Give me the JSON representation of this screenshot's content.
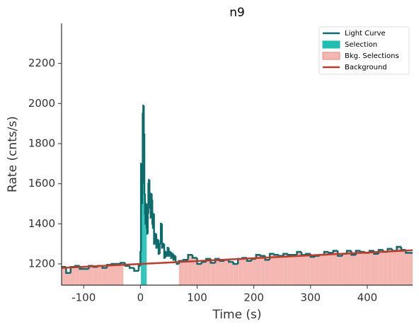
{
  "chart_data": {
    "type": "lightcurve",
    "title": "n9",
    "x_label": "Time (s)",
    "y_label": "Rate (cnts/s)",
    "xlim": [
      -139,
      480
    ],
    "ylim": [
      1094,
      2400
    ],
    "xticks": [
      -100,
      0,
      100,
      200,
      300,
      400
    ],
    "yticks": [
      1200,
      1400,
      1600,
      1800,
      2000,
      2200
    ],
    "series": [
      {
        "name": "Light Curve",
        "color": "#0e6b6b",
        "x": [
          -139,
          -131,
          -123,
          -115,
          -107,
          -99,
          -91,
          -83,
          -75,
          -67,
          -59,
          -51,
          -43,
          -35,
          -27,
          -19,
          -11,
          -3,
          0,
          1,
          2,
          3,
          4,
          5,
          6,
          7,
          8,
          9,
          10,
          11,
          12,
          13,
          14,
          15,
          16,
          17,
          18,
          19,
          20,
          21,
          22,
          23,
          24,
          26,
          28,
          30,
          32,
          34,
          36,
          38,
          40,
          42,
          44,
          46,
          48,
          50,
          52,
          54,
          56,
          58,
          60,
          62,
          64,
          68,
          76,
          84,
          92,
          100,
          108,
          116,
          124,
          132,
          140,
          148,
          156,
          164,
          172,
          180,
          188,
          196,
          204,
          212,
          220,
          228,
          236,
          244,
          252,
          260,
          268,
          276,
          284,
          292,
          300,
          308,
          316,
          324,
          332,
          340,
          348,
          356,
          364,
          372,
          380,
          388,
          396,
          404,
          412,
          420,
          428,
          436,
          444,
          452,
          460,
          468
        ],
        "values": [
          1185,
          1155,
          1185,
          1190,
          1175,
          1175,
          1190,
          1185,
          1190,
          1180,
          1195,
          1200,
          1200,
          1205,
          1190,
          1180,
          1165,
          1190,
          1260,
          1700,
          1500,
          1600,
          1950,
          1990,
          1850,
          1550,
          1450,
          1400,
          1500,
          1380,
          1350,
          1450,
          1600,
          1620,
          1500,
          1480,
          1430,
          1550,
          1520,
          1400,
          1380,
          1450,
          1300,
          1350,
          1280,
          1320,
          1250,
          1300,
          1400,
          1280,
          1300,
          1230,
          1260,
          1240,
          1280,
          1240,
          1260,
          1230,
          1250,
          1220,
          1240,
          1210,
          1200,
          1215,
          1220,
          1245,
          1230,
          1200,
          1210,
          1225,
          1205,
          1225,
          1215,
          1220,
          1210,
          1200,
          1225,
          1230,
          1215,
          1225,
          1245,
          1240,
          1220,
          1250,
          1245,
          1240,
          1250,
          1245,
          1245,
          1260,
          1245,
          1250,
          1235,
          1240,
          1245,
          1260,
          1255,
          1265,
          1240,
          1250,
          1265,
          1245,
          1265,
          1260,
          1255,
          1265,
          1250,
          1270,
          1260,
          1275,
          1265,
          1285,
          1270,
          1255
        ]
      },
      {
        "name": "Background",
        "color": "#c0392b",
        "x": [
          -139,
          480
        ],
        "values": [
          1180,
          1268
        ]
      }
    ],
    "regions": [
      {
        "name": "Selection",
        "color": "#1dbfb3",
        "ranges": [
          [
            1,
            11
          ]
        ]
      },
      {
        "name": "Bkg. Selections",
        "color": "#f5b7b1",
        "ranges": [
          [
            -139,
            -30
          ],
          [
            68,
            480
          ]
        ]
      }
    ]
  }
}
